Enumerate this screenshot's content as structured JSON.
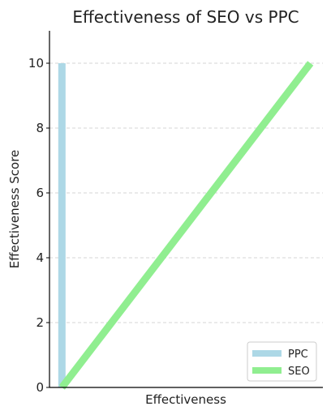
{
  "chart_data": {
    "type": "line",
    "title": "Effectiveness of SEO vs PPC",
    "xlabel": "Effectiveness",
    "ylabel": "Effectiveness Score",
    "ylim": [
      0,
      11
    ],
    "xlim": [
      -0.05,
      1.05
    ],
    "yticks": [
      "0",
      "2",
      "4",
      "6",
      "8",
      "10"
    ],
    "grid": "y-dashed",
    "legend_position": "bottom-right",
    "series": [
      {
        "name": "PPC",
        "color": "#add8e6",
        "x": [
          0,
          0
        ],
        "y": [
          0,
          10
        ]
      },
      {
        "name": "SEO",
        "color": "#90ee90",
        "x": [
          0,
          1
        ],
        "y": [
          0,
          10
        ]
      }
    ]
  }
}
